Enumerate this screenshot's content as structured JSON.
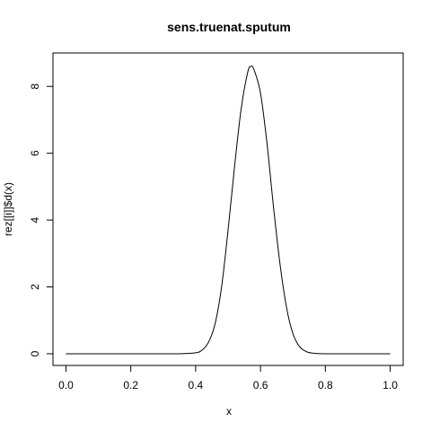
{
  "chart_data": {
    "type": "line",
    "title": "sens.truenat.sputum",
    "xlabel": "x",
    "ylabel": "rez[[i]]$d(x)",
    "xlim": [
      -0.04,
      1.04
    ],
    "ylim": [
      -0.35,
      9.0
    ],
    "grid": false,
    "x_ticks": [
      0.0,
      0.2,
      0.4,
      0.6,
      0.8,
      1.0
    ],
    "x_tick_labels": [
      "0.0",
      "0.2",
      "0.4",
      "0.6",
      "0.8",
      "1.0"
    ],
    "y_ticks": [
      0,
      2,
      4,
      6,
      8
    ],
    "y_tick_labels": [
      "0",
      "2",
      "4",
      "6",
      "8"
    ],
    "series": [
      {
        "x": [
          0.0,
          0.05,
          0.1,
          0.15,
          0.2,
          0.25,
          0.3,
          0.35,
          0.4,
          0.42,
          0.44,
          0.46,
          0.48,
          0.5,
          0.52,
          0.54,
          0.56,
          0.57,
          0.58,
          0.6,
          0.62,
          0.64,
          0.66,
          0.68,
          0.7,
          0.72,
          0.74,
          0.76,
          0.8,
          0.85,
          0.9,
          0.95,
          1.0
        ],
        "y": [
          0.0,
          0.0,
          0.0,
          0.0,
          0.0,
          0.0,
          0.0,
          0.0,
          0.03,
          0.11,
          0.35,
          0.9,
          2.0,
          3.7,
          5.6,
          7.3,
          8.4,
          8.6,
          8.5,
          7.8,
          6.3,
          4.4,
          2.7,
          1.4,
          0.6,
          0.22,
          0.07,
          0.02,
          0.0,
          0.0,
          0.0,
          0.0,
          0.0
        ]
      }
    ]
  }
}
